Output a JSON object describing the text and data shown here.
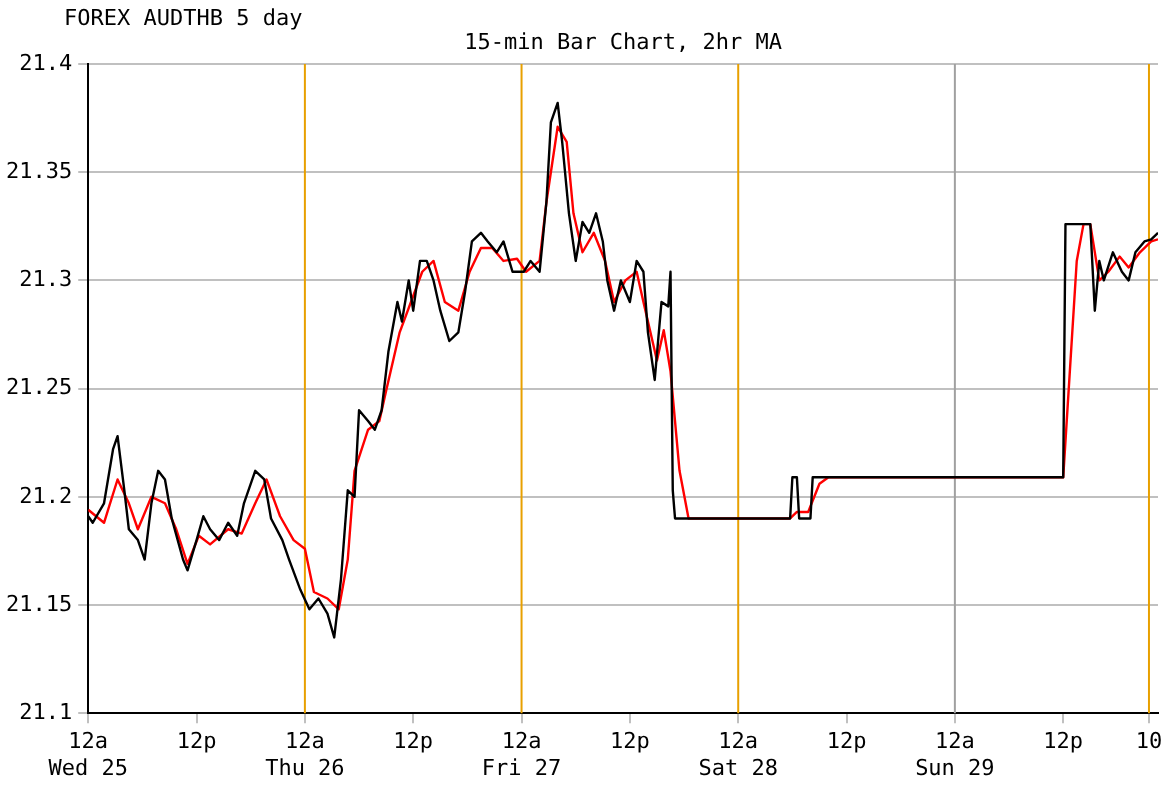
{
  "chart_data": {
    "type": "line",
    "title": "FOREX AUDTHB 5 day",
    "subtitle": "15-min Bar Chart, 2hr MA",
    "xlim": [
      "--06-25T00:00",
      "--06-29T22:30"
    ],
    "xticks": [
      {
        "value": "--06-25T00:00",
        "label": "12a\nWed 25"
      },
      {
        "value": "--06-25T12:00",
        "label": "12p"
      },
      {
        "value": "--06-26T00:00",
        "label": "12a\nThu 26"
      },
      {
        "value": "--06-26T12:00",
        "label": "12p"
      },
      {
        "value": "--06-27T00:00",
        "label": "12a\nFri 27"
      },
      {
        "value": "--06-27T12:00",
        "label": "12p"
      },
      {
        "value": "--06-28T00:00",
        "label": "12a\nSat 28"
      },
      {
        "value": "--06-28T12:00",
        "label": "12p"
      },
      {
        "value": "--06-29T00:00",
        "label": "12a\nSun 29"
      },
      {
        "value": "--06-29T12:00",
        "label": "12p"
      },
      {
        "value": "--06-29T21:30",
        "label": "10"
      }
    ],
    "ylim": [
      21.1,
      21.4
    ],
    "yticks": [
      21.1,
      21.15,
      21.2,
      21.25,
      21.3,
      21.35,
      21.4
    ],
    "grid": "y",
    "legend": false,
    "marker": "none",
    "line_style": "solid",
    "ref_lines": [
      {
        "axis": "x",
        "value": "--06-26T00:00",
        "color": "#e8a000"
      },
      {
        "axis": "x",
        "value": "--06-27T00:00",
        "color": "#e8a000"
      },
      {
        "axis": "x",
        "value": "--06-28T00:00",
        "color": "#e8a000"
      },
      {
        "axis": "x",
        "value": "--06-29T00:00",
        "color": "#a0a0a0"
      },
      {
        "axis": "x",
        "value": "--06-29T21:30",
        "color": "#e8a000"
      }
    ],
    "series": [
      {
        "color": "#000000",
        "x": [
          "--06-25T00:00",
          "--06-25T00:30",
          "--06-25T01:45",
          "--06-25T02:45",
          "--06-25T03:15",
          "--06-25T04:00",
          "--06-25T04:30",
          "--06-25T05:30",
          "--06-25T06:15",
          "--06-25T07:00",
          "--06-25T07:45",
          "--06-25T08:30",
          "--06-25T09:15",
          "--06-25T10:30",
          "--06-25T11:00",
          "--06-25T12:00",
          "--06-25T12:45",
          "--06-25T13:30",
          "--06-25T14:30",
          "--06-25T15:30",
          "--06-25T16:30",
          "--06-25T17:15",
          "--06-25T18:30",
          "--06-25T19:30",
          "--06-25T20:15",
          "--06-25T21:30",
          "--06-25T22:15",
          "--06-25T23:30",
          "--06-26T00:30",
          "--06-26T01:30",
          "--06-26T02:30",
          "--06-26T03:15",
          "--06-26T04:00",
          "--06-26T04:45",
          "--06-26T05:30",
          "--06-26T06:00",
          "--06-26T07:00",
          "--06-26T07:45",
          "--06-26T08:30",
          "--06-26T09:15",
          "--06-26T10:15",
          "--06-26T10:45",
          "--06-26T11:30",
          "--06-26T12:00",
          "--06-26T12:45",
          "--06-26T13:30",
          "--06-26T14:15",
          "--06-26T15:00",
          "--06-26T16:00",
          "--06-26T17:00",
          "--06-26T17:45",
          "--06-26T18:30",
          "--06-26T19:30",
          "--06-26T20:15",
          "--06-26T21:15",
          "--06-26T22:00",
          "--06-26T23:00",
          "--06-27T00:15",
          "--06-27T01:00",
          "--06-27T02:00",
          "--06-27T02:45",
          "--06-27T03:15",
          "--06-27T04:00",
          "--06-27T04:30",
          "--06-27T05:15",
          "--06-27T06:00",
          "--06-27T06:45",
          "--06-27T07:30",
          "--06-27T08:15",
          "--06-27T09:00",
          "--06-27T09:30",
          "--06-27T10:15",
          "--06-27T11:00",
          "--06-27T12:00",
          "--06-27T12:45",
          "--06-27T13:30",
          "--06-27T14:00",
          "--06-27T14:45",
          "--06-27T15:30",
          "--06-27T16:15",
          "--06-27T16:30",
          "--06-27T16:45",
          "--06-27T17:00",
          "--06-28T05:45",
          "--06-28T06:00",
          "--06-28T06:30",
          "--06-28T06:45",
          "--06-28T08:00",
          "--06-28T08:15",
          "--06-29T12:00",
          "--06-29T12:15",
          "--06-29T15:00",
          "--06-29T15:30",
          "--06-29T16:00",
          "--06-29T16:30",
          "--06-29T17:30",
          "--06-29T18:30",
          "--06-29T19:15",
          "--06-29T20:00",
          "--06-29T21:00",
          "--06-29T21:45",
          "--06-29T22:30"
        ],
        "values": [
          21.191,
          21.188,
          21.197,
          21.222,
          21.228,
          21.203,
          21.185,
          21.18,
          21.171,
          21.197,
          21.212,
          21.208,
          21.19,
          21.171,
          21.166,
          21.18,
          21.191,
          21.185,
          21.18,
          21.188,
          21.182,
          21.197,
          21.212,
          21.208,
          21.19,
          21.18,
          21.171,
          21.157,
          21.148,
          21.153,
          21.146,
          21.135,
          21.162,
          21.203,
          21.2,
          21.24,
          21.235,
          21.231,
          21.24,
          21.267,
          21.29,
          21.281,
          21.3,
          21.286,
          21.309,
          21.309,
          21.3,
          21.286,
          21.272,
          21.276,
          21.295,
          21.318,
          21.322,
          21.318,
          21.313,
          21.318,
          21.304,
          21.304,
          21.309,
          21.304,
          21.336,
          21.373,
          21.382,
          21.364,
          21.331,
          21.309,
          21.327,
          21.322,
          21.331,
          21.318,
          21.3,
          21.286,
          21.3,
          21.29,
          21.309,
          21.304,
          21.276,
          21.254,
          21.29,
          21.288,
          21.304,
          21.203,
          21.19,
          21.19,
          21.209,
          21.209,
          21.19,
          21.19,
          21.209,
          21.209,
          21.326,
          21.326,
          21.286,
          21.309,
          21.3,
          21.313,
          21.304,
          21.3,
          21.313,
          21.318,
          21.319,
          21.322
        ]
      },
      {
        "color": "#ff0000",
        "x": [
          "--06-25T00:00",
          "--06-25T01:45",
          "--06-25T03:15",
          "--06-25T04:30",
          "--06-25T05:30",
          "--06-25T07:00",
          "--06-25T08:30",
          "--06-25T09:45",
          "--06-25T11:00",
          "--06-25T12:15",
          "--06-25T13:30",
          "--06-25T15:30",
          "--06-25T17:00",
          "--06-25T18:30",
          "--06-25T19:45",
          "--06-25T21:15",
          "--06-25T22:45",
          "--06-26T00:00",
          "--06-26T01:00",
          "--06-26T02:30",
          "--06-26T03:45",
          "--06-26T04:45",
          "--06-26T05:30",
          "--06-26T07:00",
          "--06-26T08:15",
          "--06-26T09:00",
          "--06-26T10:30",
          "--06-26T11:45",
          "--06-26T13:00",
          "--06-26T14:15",
          "--06-26T15:30",
          "--06-26T17:00",
          "--06-26T18:15",
          "--06-26T19:30",
          "--06-26T20:45",
          "--06-26T22:00",
          "--06-26T23:30",
          "--06-27T00:30",
          "--06-27T02:00",
          "--06-27T02:45",
          "--06-27T04:00",
          "--06-27T05:00",
          "--06-27T05:45",
          "--06-27T06:45",
          "--06-27T08:00",
          "--06-27T09:15",
          "--06-27T10:15",
          "--06-27T11:30",
          "--06-27T12:45",
          "--06-27T13:30",
          "--06-27T15:00",
          "--06-27T15:45",
          "--06-27T16:30",
          "--06-27T17:30",
          "--06-27T18:30",
          "--06-28T05:45",
          "--06-28T06:30",
          "--06-28T07:45",
          "--06-28T09:00",
          "--06-28T10:00",
          "--06-29T12:00",
          "--06-29T13:30",
          "--06-29T14:15",
          "--06-29T15:00",
          "--06-29T16:00",
          "--06-29T17:00",
          "--06-29T18:15",
          "--06-29T19:15",
          "--06-29T20:30",
          "--06-29T21:45",
          "--06-29T22:30"
        ],
        "values": [
          21.194,
          21.188,
          21.208,
          21.197,
          21.185,
          21.2,
          21.197,
          21.185,
          21.169,
          21.182,
          21.178,
          21.185,
          21.183,
          21.197,
          21.208,
          21.191,
          21.18,
          21.176,
          21.156,
          21.153,
          21.148,
          21.171,
          21.212,
          21.231,
          21.235,
          21.249,
          21.276,
          21.29,
          21.304,
          21.309,
          21.29,
          21.286,
          21.304,
          21.315,
          21.315,
          21.309,
          21.31,
          21.304,
          21.309,
          21.336,
          21.371,
          21.364,
          21.331,
          21.313,
          21.322,
          21.309,
          21.29,
          21.3,
          21.304,
          21.29,
          21.263,
          21.277,
          21.258,
          21.212,
          21.19,
          21.19,
          21.193,
          21.193,
          21.206,
          21.209,
          21.209,
          21.309,
          21.326,
          21.326,
          21.3,
          21.304,
          21.311,
          21.306,
          21.313,
          21.318,
          21.319
        ]
      }
    ]
  }
}
